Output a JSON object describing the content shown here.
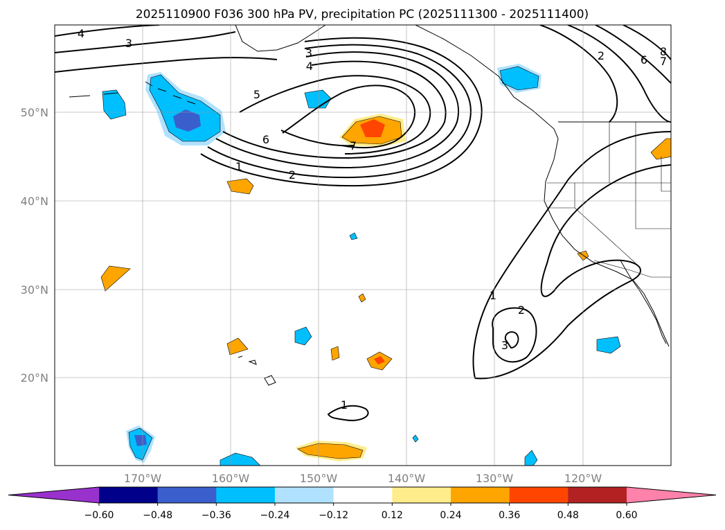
{
  "title": "2025110900 F036 300 hPa PV, precipitation PC (2025111300 - 2025111400)",
  "map": {
    "lon_labels": [
      "170°W",
      "160°W",
      "150°W",
      "140°W",
      "130°W",
      "120°W"
    ],
    "lat_labels": [
      "50°N",
      "40°N",
      "30°N",
      "20°N"
    ],
    "pv_contour_labels": [
      "1",
      "2",
      "3",
      "4",
      "5",
      "6",
      "7",
      "4",
      "3",
      "2",
      "6",
      "7",
      "8",
      "1",
      "2",
      "3",
      "1"
    ]
  },
  "colorbar": {
    "ticks": [
      "−0.60",
      "−0.48",
      "−0.36",
      "−0.24",
      "−0.12",
      "0.12",
      "0.24",
      "0.36",
      "0.48",
      "0.60"
    ],
    "colors": [
      "#9932CC",
      "#00008B",
      "#3A5FCD",
      "#00BFFF",
      "#B0E2FF",
      "#FFFFFF",
      "#FFEC8B",
      "#FFA500",
      "#FF4500",
      "#B22222",
      "#FF82AB"
    ]
  },
  "colors": {
    "neg_light": "#B0E2FF",
    "neg_mid": "#00BFFF",
    "neg_strong": "#3A5FCD",
    "pos_light": "#FFEC8B",
    "pos_mid": "#FFA500",
    "pos_strong": "#FF4500"
  }
}
